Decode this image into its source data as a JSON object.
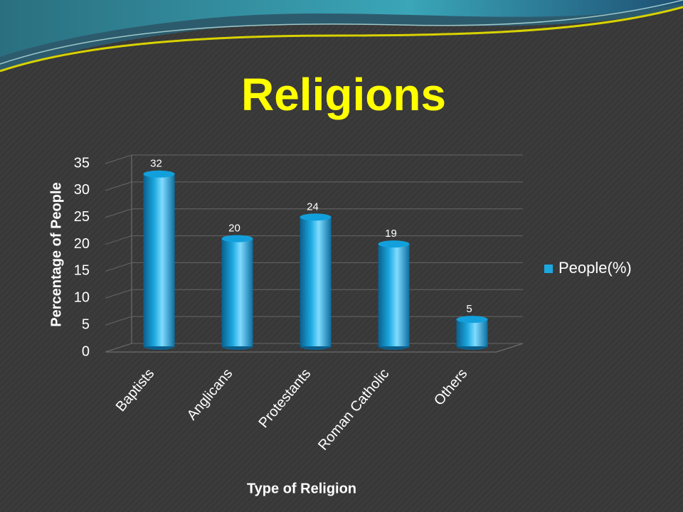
{
  "chart_data": {
    "type": "bar",
    "title": "Religions",
    "x_label": "Type of Religion",
    "y_label": "Percentage of People",
    "categories": [
      "Baptists",
      "Anglicans",
      "Protestants",
      "Roman Catholic",
      "Others"
    ],
    "series": [
      {
        "name": "People(%)",
        "color": "#1ba8e0",
        "values": [
          32,
          20,
          24,
          19,
          5
        ]
      }
    ],
    "ylim": [
      0,
      35
    ],
    "yticks": [
      0,
      5,
      10,
      15,
      20,
      25,
      30,
      35
    ],
    "grid": true,
    "legend": "right"
  }
}
